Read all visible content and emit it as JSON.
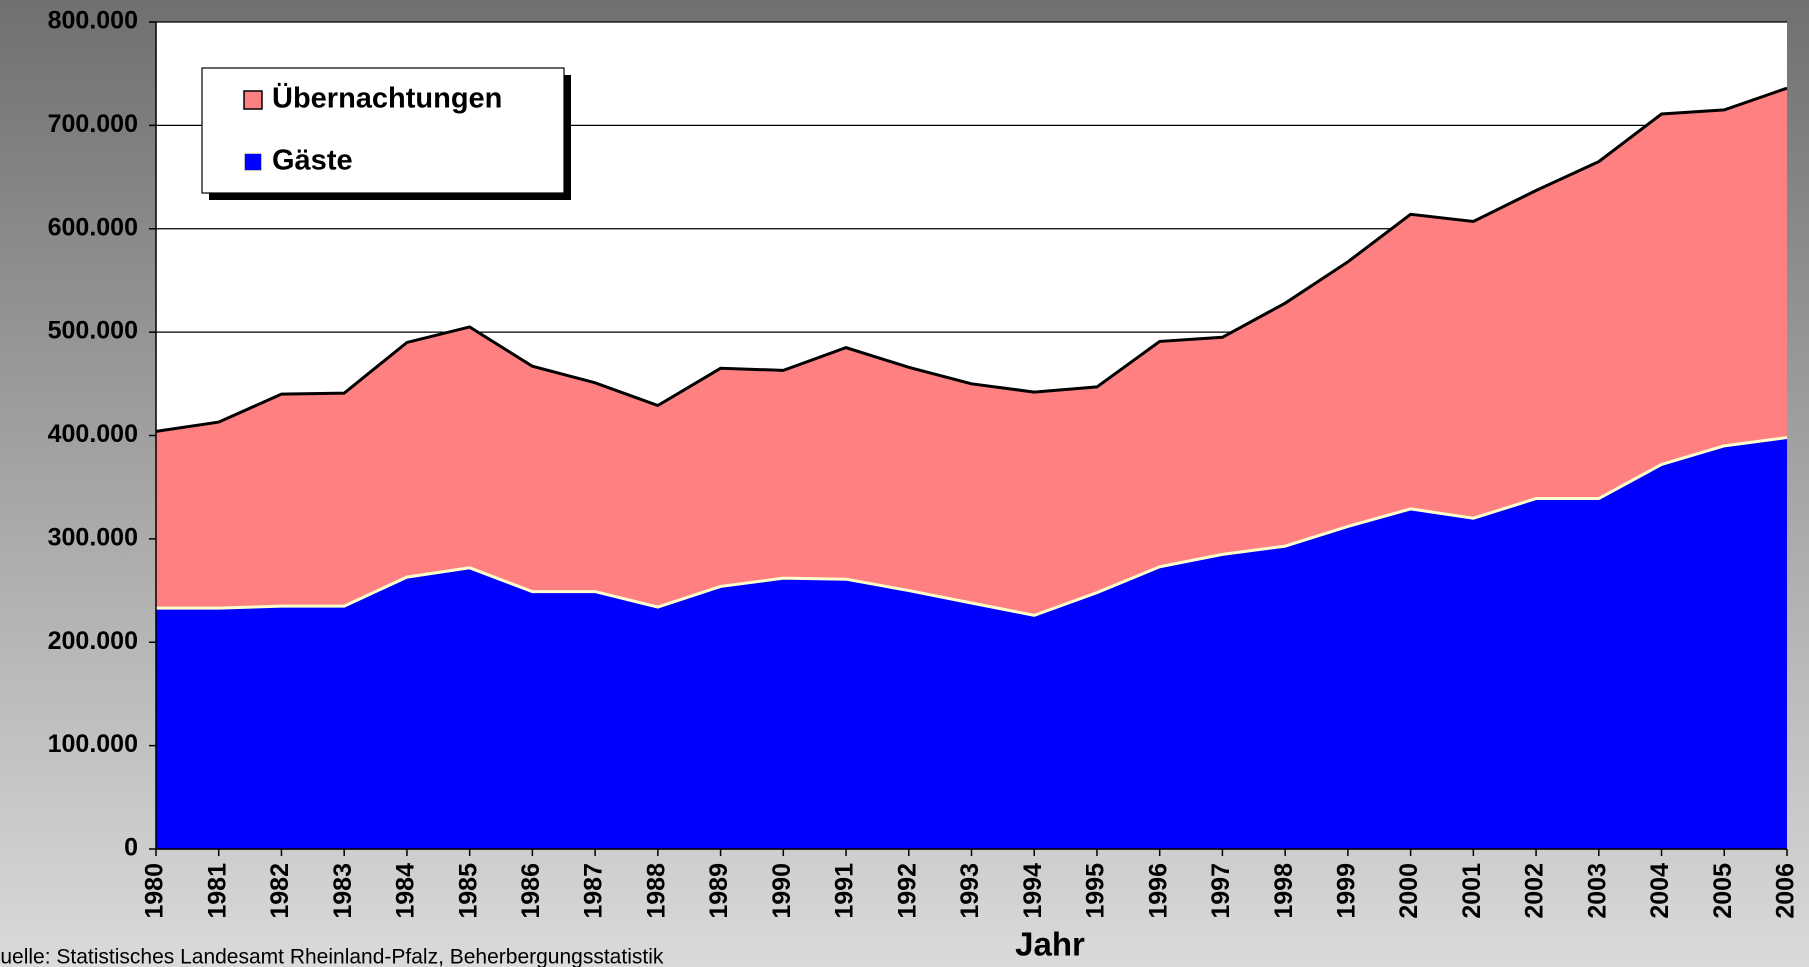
{
  "chart_data": {
    "type": "area",
    "x_label": "Jahr",
    "source": "Quelle: Statistisches Landesamt Rheinland-Pfalz, Beherbergungsstatistik",
    "categories": [
      "1980",
      "1981",
      "1982",
      "1983",
      "1984",
      "1985",
      "1986",
      "1987",
      "1988",
      "1989",
      "1990",
      "1991",
      "1992",
      "1993",
      "1994",
      "1995",
      "1996",
      "1997",
      "1998",
      "1999",
      "2000",
      "2001",
      "2002",
      "2003",
      "2004",
      "2005",
      "2006"
    ],
    "series": [
      {
        "name": "Übernachtungen",
        "color": "#ff8080",
        "outline": "#000000",
        "values": [
          404000,
          413000,
          440000,
          441000,
          490000,
          505000,
          467000,
          451000,
          429000,
          465000,
          463000,
          485000,
          466000,
          450000,
          442000,
          447000,
          491000,
          495000,
          528000,
          568000,
          614000,
          607000,
          637000,
          665000,
          711000,
          715000,
          736000
        ]
      },
      {
        "name": "Gäste",
        "color": "#0000ff",
        "outline": "#ffffcc",
        "values": [
          233000,
          233000,
          235000,
          235000,
          263000,
          272000,
          249000,
          249000,
          234000,
          254000,
          262000,
          261000,
          250000,
          238000,
          226000,
          248000,
          273000,
          285000,
          293000,
          312000,
          329000,
          320000,
          339000,
          339000,
          372000,
          390000,
          398000
        ]
      }
    ],
    "ylim": [
      0,
      800000
    ],
    "yticks": [
      0,
      {
        "value": 100000,
        "label": "100.000"
      },
      {
        "value": 200000,
        "label": "200.000"
      },
      {
        "value": 300000,
        "label": "300.000"
      },
      {
        "value": 400000,
        "label": "400.000"
      },
      {
        "value": 500000,
        "label": "500.000"
      },
      {
        "value": 600000,
        "label": "600.000"
      },
      {
        "value": 700000,
        "label": "700.000"
      },
      {
        "value": 800000,
        "label": "800.000"
      }
    ],
    "grid": true
  }
}
